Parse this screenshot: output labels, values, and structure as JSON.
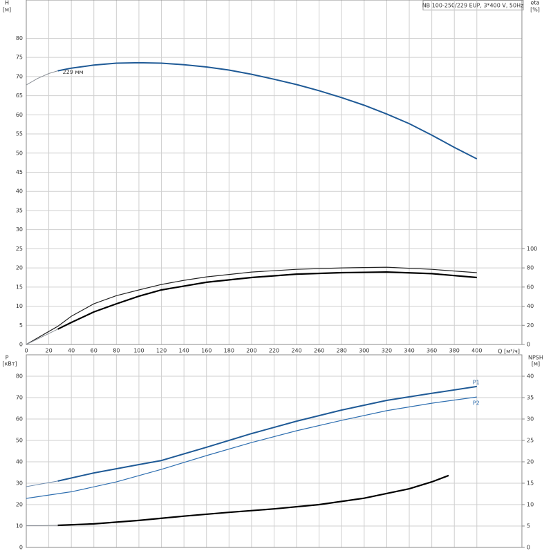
{
  "chart_data": [
    {
      "type": "line",
      "title": "NB 100-250/229 EUP, 3*400 V, 50Hz",
      "ylabel": "H",
      "ylabel_unit": "[м]",
      "y2label": "eta",
      "y2label_unit": "[%]",
      "xlabel": "Q [м³/ч]",
      "xlim": [
        0,
        440
      ],
      "xticks": [
        0,
        20,
        40,
        60,
        80,
        100,
        120,
        140,
        160,
        180,
        200,
        220,
        240,
        260,
        280,
        300,
        320,
        340,
        360,
        380,
        400
      ],
      "ylim": [
        0,
        90
      ],
      "yticks": [
        0,
        5,
        10,
        15,
        20,
        25,
        30,
        35,
        40,
        45,
        50,
        55,
        60,
        65,
        70,
        75,
        80
      ],
      "y2lim": [
        0,
        360
      ],
      "y2ticks": [
        0,
        20,
        40,
        60,
        80,
        100
      ],
      "grid": true,
      "series": [
        {
          "x": [
            0,
            10,
            20,
            28
          ],
          "values": [
            67.8,
            69.5,
            70.8,
            71.5
          ],
          "color": "#8a8f96",
          "width": 1
        },
        {
          "name": "229 мм",
          "x": [
            28,
            40,
            60,
            80,
            100,
            120,
            140,
            160,
            180,
            200,
            220,
            240,
            260,
            280,
            300,
            320,
            340,
            360,
            380,
            400
          ],
          "values": [
            71.5,
            72.2,
            73,
            73.5,
            73.6,
            73.5,
            73.1,
            72.5,
            71.7,
            70.6,
            69.3,
            67.9,
            66.3,
            64.5,
            62.5,
            60.2,
            57.7,
            54.7,
            51.5,
            48.5
          ],
          "color": "#1f5a96",
          "width": 2
        },
        {
          "axis": "y2",
          "x": [
            0,
            28,
            40,
            60,
            80,
            100,
            120,
            140,
            160,
            200,
            240,
            280,
            320,
            360,
            400
          ],
          "values": [
            0,
            19,
            29.5,
            42.5,
            51,
            57,
            62.7,
            67,
            70.6,
            75.7,
            78.5,
            80,
            80.7,
            78.5,
            75
          ],
          "color": "#222222",
          "width": 1.2
        },
        {
          "axis": "y2",
          "x": [
            0,
            14,
            28
          ],
          "values": [
            0,
            8,
            16
          ],
          "color": "#8a8f96",
          "width": 1
        },
        {
          "axis": "y2",
          "x": [
            28,
            40,
            60,
            80,
            100,
            120,
            140,
            160,
            200,
            240,
            280,
            320,
            360,
            400
          ],
          "values": [
            16,
            23,
            34,
            42.5,
            50.4,
            57,
            61,
            65,
            70,
            73.5,
            75,
            75.7,
            74,
            70
          ],
          "color": "#000000",
          "width": 2.2
        }
      ]
    },
    {
      "type": "line",
      "ylabel": "P",
      "ylabel_unit": "[кВт]",
      "y2label": "NPSH",
      "y2label_unit": "[м]",
      "ylim": [
        0,
        90
      ],
      "yticks": [
        0,
        10,
        20,
        30,
        40,
        50,
        60,
        70,
        80
      ],
      "y2lim": [
        0,
        45
      ],
      "y2ticks": [
        0,
        5,
        10,
        15,
        20,
        25,
        30,
        35,
        40
      ],
      "grid": true,
      "series": [
        {
          "x": [
            0,
            14,
            28
          ],
          "values": [
            28.4,
            29.7,
            31
          ],
          "color": "#6f8db0",
          "width": 1
        },
        {
          "name": "P1",
          "x": [
            28,
            60,
            100,
            120,
            160,
            200,
            240,
            280,
            320,
            360,
            400
          ],
          "values": [
            31,
            34.8,
            38.7,
            40.6,
            46.8,
            53.2,
            59,
            64.2,
            68.7,
            72,
            75.2
          ],
          "color": "#1f5a96",
          "width": 2
        },
        {
          "name": "P2",
          "x": [
            0,
            40,
            80,
            120,
            160,
            200,
            240,
            280,
            320,
            360,
            400
          ],
          "values": [
            22.9,
            26,
            30.6,
            36.5,
            42.9,
            49,
            54.5,
            59.4,
            63.9,
            67.4,
            70.3
          ],
          "color": "#2f6fb0",
          "width": 1.2
        },
        {
          "axis": "y2",
          "x": [
            0,
            14,
            28
          ],
          "values": [
            5.1,
            5.1,
            5.16
          ],
          "color": "#8a8f96",
          "width": 1
        },
        {
          "axis": "y2",
          "x": [
            28,
            60,
            100,
            140,
            180,
            220,
            260,
            300,
            340,
            360,
            375
          ],
          "values": [
            5.16,
            5.5,
            6.3,
            7.3,
            8.2,
            9,
            10,
            11.5,
            13.7,
            15.3,
            16.8
          ],
          "color": "#000000",
          "width": 2.2
        }
      ]
    }
  ]
}
